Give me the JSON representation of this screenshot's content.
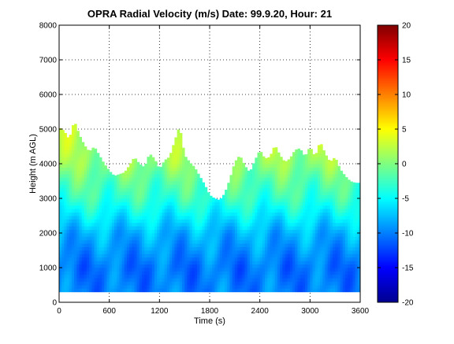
{
  "chart_data": {
    "type": "heatmap",
    "title": "OPRA Radial Velocity (m/s)  Date: 99.9.20, Hour: 21",
    "xlabel": "Time (s)",
    "ylabel": "Height (m AGL)",
    "xlim": [
      0,
      3600
    ],
    "ylim": [
      0,
      8000
    ],
    "x_ticks": [
      "0",
      "600",
      "1200",
      "1800",
      "2400",
      "3000",
      "3600"
    ],
    "y_ticks": [
      "0",
      "1000",
      "2000",
      "3000",
      "4000",
      "5000",
      "6000",
      "7000",
      "8000"
    ],
    "grid": true,
    "colorbar": {
      "colormap": "jet",
      "clim": [
        -20,
        20
      ],
      "ticks": [
        "-20",
        "-15",
        "-10",
        "-5",
        "0",
        "5",
        "10",
        "15",
        "20"
      ]
    },
    "data_bottom_height": 300,
    "echo_top_profile": {
      "time": [
        0,
        60,
        120,
        180,
        240,
        300,
        360,
        420,
        480,
        540,
        600,
        660,
        720,
        780,
        840,
        900,
        960,
        1020,
        1080,
        1140,
        1200,
        1260,
        1320,
        1380,
        1440,
        1500,
        1560,
        1620,
        1680,
        1740,
        1800,
        1860,
        1920,
        1980,
        2040,
        2100,
        2160,
        2220,
        2280,
        2340,
        2400,
        2460,
        2520,
        2580,
        2640,
        2700,
        2760,
        2820,
        2880,
        2940,
        3000,
        3060,
        3120,
        3180,
        3240,
        3300,
        3360,
        3420,
        3480,
        3540
      ],
      "height": [
        5050,
        4950,
        4700,
        5250,
        4850,
        4550,
        4350,
        4500,
        4250,
        4000,
        3800,
        3650,
        3700,
        3750,
        3950,
        4200,
        4000,
        3900,
        4300,
        4150,
        3850,
        4100,
        4200,
        4650,
        5100,
        4250,
        4050,
        3900,
        3650,
        3400,
        3100,
        3000,
        2950,
        3150,
        3550,
        4050,
        4250,
        3950,
        3750,
        4100,
        4400,
        4150,
        4200,
        4550,
        4250,
        4050,
        4150,
        4400,
        4450,
        4200,
        4500,
        4200,
        4650,
        4300,
        4050,
        4200,
        3850,
        3650,
        3500,
        3450
      ]
    },
    "velocity_profile": {
      "height": [
        300,
        1000,
        2000,
        2500,
        3000,
        3500,
        4000,
        4500,
        5000
      ],
      "velocity": [
        -10,
        -10.5,
        -8,
        -5.5,
        -3,
        -1.5,
        0.5,
        1.5,
        2.5
      ]
    }
  }
}
